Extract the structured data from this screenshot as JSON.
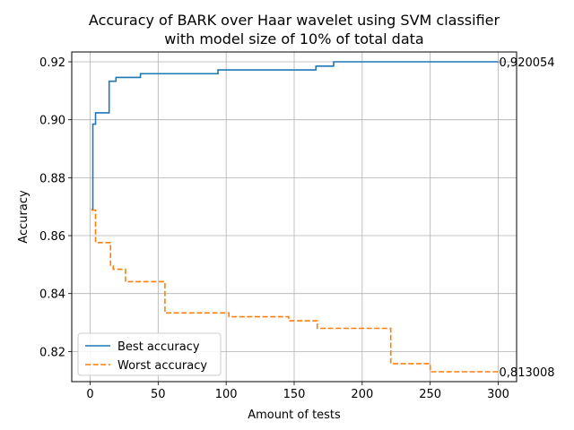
{
  "chart_data": {
    "type": "line",
    "title": [
      "Accuracy of BARK over Haar wavelet using SVM classifier",
      "with model size of 10% of total data"
    ],
    "xlabel": "Amount of tests",
    "ylabel": "Accuracy",
    "xlim": [
      -13.5,
      313.5
    ],
    "ylim": [
      0.8096,
      0.9234
    ],
    "xticks": [
      0,
      50,
      100,
      150,
      200,
      250,
      300
    ],
    "yticks": [
      0.82,
      0.84,
      0.86,
      0.88,
      0.9,
      0.92
    ],
    "ytick_labels": [
      "0.82",
      "0.84",
      "0.86",
      "0.88",
      "0.90",
      "0.92"
    ],
    "grid": true,
    "legend_position": "lower-left",
    "series": [
      {
        "name": "Best accuracy",
        "color": "#1f77b4",
        "linestyle": "solid",
        "x": [
          1,
          2,
          3,
          4,
          13,
          14,
          18,
          19,
          36,
          37,
          93,
          94,
          165,
          166,
          178,
          179,
          300
        ],
        "y": [
          0.869,
          0.8985,
          0.8985,
          0.9024,
          0.9024,
          0.9133,
          0.9133,
          0.9146,
          0.9146,
          0.9159,
          0.9159,
          0.9172,
          0.9172,
          0.9185,
          0.9185,
          0.92,
          0.920054
        ]
      },
      {
        "name": "Worst accuracy",
        "color": "#ff7f0e",
        "linestyle": "dashed",
        "x": [
          1,
          3,
          4,
          14,
          15,
          16,
          17,
          25,
          26,
          54,
          55,
          101,
          102,
          145,
          146,
          166,
          167,
          220,
          221,
          249,
          250,
          300
        ],
        "y": [
          0.8688,
          0.8688,
          0.8576,
          0.8576,
          0.8498,
          0.8498,
          0.8484,
          0.8484,
          0.8441,
          0.8441,
          0.8333,
          0.8333,
          0.832,
          0.832,
          0.8306,
          0.8306,
          0.828,
          0.828,
          0.8158,
          0.8158,
          0.813,
          0.813008
        ]
      }
    ],
    "annotations": [
      {
        "text": "0,920054",
        "x": 300,
        "y": 0.920054
      },
      {
        "text": "0,813008",
        "x": 300,
        "y": 0.813008
      }
    ]
  }
}
